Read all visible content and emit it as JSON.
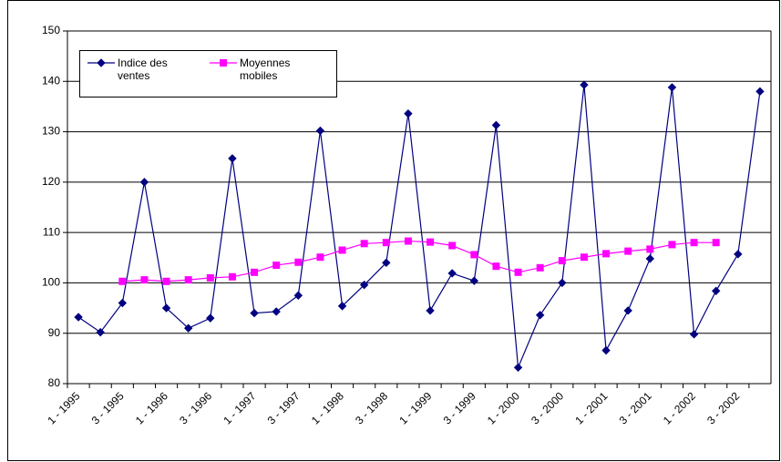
{
  "chart_data": {
    "type": "line",
    "categories": [
      "1 - 1995",
      null,
      "3 - 1995",
      null,
      "1 - 1996",
      null,
      "3 - 1996",
      null,
      "1 - 1997",
      null,
      "3 - 1997",
      null,
      "1 - 1998",
      null,
      "3 - 1998",
      null,
      "1 - 1999",
      null,
      "3 - 1999",
      null,
      "1 - 2000",
      null,
      "3 - 2000",
      null,
      "1 - 2001",
      null,
      "3 - 2001",
      null,
      "1 - 2002",
      null,
      "3 - 2002",
      null
    ],
    "series": [
      {
        "name": "Indice des ventes",
        "color": "#000080",
        "marker": "diamond",
        "values": [
          93.2,
          90.2,
          96,
          120,
          95,
          91,
          93,
          124.7,
          94,
          94.3,
          97.5,
          130.2,
          95.4,
          99.6,
          104,
          133.6,
          94.5,
          101.9,
          100.4,
          131.3,
          83.2,
          93.6,
          100,
          139.3,
          86.6,
          94.5,
          104.8,
          138.8,
          89.8,
          98.4,
          105.7,
          138
        ]
      },
      {
        "name": "Moyennes mobiles",
        "color": "#ff00ff",
        "marker": "square",
        "values": [
          null,
          null,
          100.3,
          100.6,
          100.3,
          100.6,
          101,
          101.2,
          102.1,
          103.5,
          104.1,
          105.1,
          106.5,
          107.8,
          108,
          108.3,
          108.1,
          107.4,
          105.6,
          103.3,
          102.1,
          103,
          104.4,
          105.1,
          105.8,
          106.3,
          106.7,
          107.6,
          108,
          108,
          null,
          null
        ]
      }
    ],
    "ylim": [
      80,
      150
    ],
    "yticks": [
      80,
      90,
      100,
      110,
      120,
      130,
      140,
      150
    ],
    "grid": true
  }
}
